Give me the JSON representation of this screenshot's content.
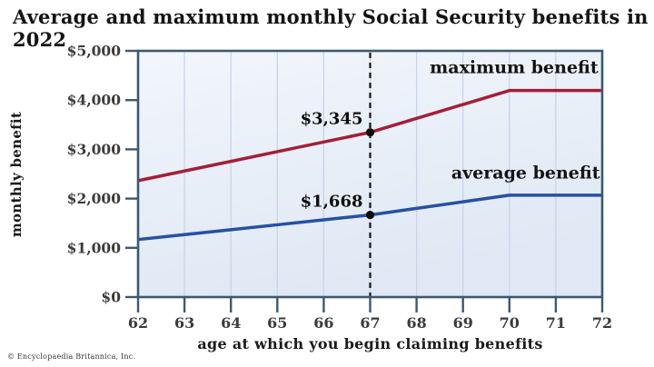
{
  "title": "Average and maximum monthly Social Security benefits in 2022",
  "attribution": "© Encyclopaedia Britannica, Inc.",
  "chart_data": {
    "type": "line",
    "title": "Average and maximum monthly Social Security benefits in 2022",
    "xlabel": "age at which you begin claiming benefits",
    "ylabel": "monthly benefit",
    "xlim": [
      62,
      72
    ],
    "ylim": [
      0,
      5000
    ],
    "x_ticks": [
      62,
      63,
      64,
      65,
      66,
      67,
      68,
      69,
      70,
      71,
      72
    ],
    "y_ticks": [
      {
        "value": 0,
        "label": "$0"
      },
      {
        "value": 1000,
        "label": "$1,000"
      },
      {
        "value": 2000,
        "label": "$2,000"
      },
      {
        "value": 3000,
        "label": "$3,000"
      },
      {
        "value": 4000,
        "label": "$4,000"
      },
      {
        "value": 5000,
        "label": "$5,000"
      }
    ],
    "grid": "vertical-only",
    "legend_position": "inline-labels",
    "series": [
      {
        "name": "maximum benefit",
        "color": "#a51e38",
        "x": [
          62,
          63,
          64,
          65,
          66,
          67,
          68,
          69,
          70,
          71,
          72
        ],
        "values": [
          2364,
          2560,
          2756,
          2953,
          3149,
          3345,
          3628,
          3911,
          4194,
          4194,
          4194
        ],
        "label_anchor": {
          "age": 70.1,
          "value": 4545
        }
      },
      {
        "name": "average benefit",
        "color": "#2750a5",
        "x": [
          62,
          63,
          64,
          65,
          66,
          67,
          68,
          69,
          70,
          71,
          72
        ],
        "values": [
          1168,
          1268,
          1368,
          1468,
          1568,
          1668,
          1801,
          1935,
          2068,
          2068,
          2068
        ],
        "label_anchor": {
          "age": 70.35,
          "value": 2405
        }
      }
    ],
    "marker": {
      "age": 67,
      "points": [
        {
          "series": "maximum benefit",
          "value": 3345,
          "label": "$3,345"
        },
        {
          "series": "average benefit",
          "value": 1668,
          "label": "$1,668"
        }
      ]
    },
    "colors": {
      "frame": "#3d5972",
      "grid": "#c9d4e8",
      "marker_line": "#141414",
      "point": "#0a0a0a",
      "tick_text": "#3b3b3b",
      "annotation_text": "#0d0d0d",
      "series_label_text": "#131313",
      "plot_bg_top": "#f2f6fc",
      "plot_bg_bottom": "#dfe8f4"
    }
  }
}
